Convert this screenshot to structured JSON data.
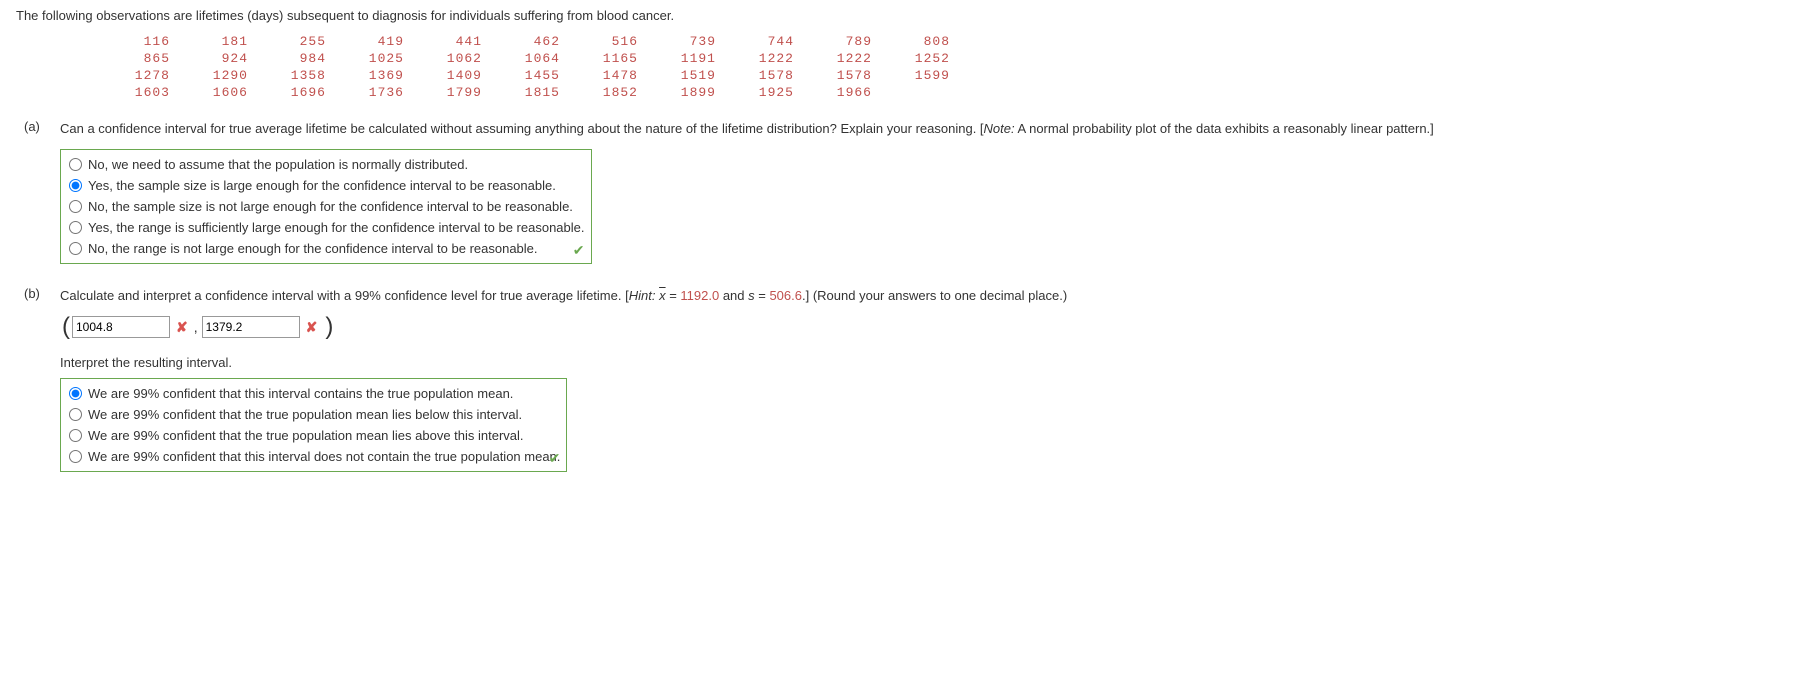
{
  "intro": "The following observations are lifetimes (days) subsequent to diagnosis for individuals suffering from blood cancer.",
  "data_rows": [
    [
      "116",
      "181",
      "255",
      "419",
      "441",
      "462",
      "516",
      "739",
      "744",
      "789",
      "808"
    ],
    [
      "865",
      "924",
      "984",
      "1025",
      "1062",
      "1064",
      "1165",
      "1191",
      "1222",
      "1222",
      "1252"
    ],
    [
      "1278",
      "1290",
      "1358",
      "1369",
      "1409",
      "1455",
      "1478",
      "1519",
      "1578",
      "1578",
      "1599"
    ],
    [
      "1603",
      "1606",
      "1696",
      "1736",
      "1799",
      "1815",
      "1852",
      "1899",
      "1925",
      "1966",
      ""
    ]
  ],
  "data_color": "#c0504d",
  "part_a": {
    "label": "(a)",
    "prompt_main": "Can a confidence interval for true average lifetime be calculated without assuming anything about the nature of the lifetime distribution? Explain your reasoning. [",
    "note_word": "Note:",
    "note_text": " A normal probability plot of the data exhibits a reasonably linear pattern.]",
    "options": [
      "No, we need to assume that the population is normally distributed.",
      "Yes, the sample size is large enough for the confidence interval to be reasonable.",
      "No, the sample size is not large enough for the confidence interval to be reasonable.",
      "Yes, the range is sufficiently large enough for the confidence interval to be reasonable.",
      "No, the range is not large enough for the confidence interval to be reasonable."
    ],
    "selected": 1,
    "correct": true
  },
  "part_b": {
    "label": "(b)",
    "prompt_pre": "Calculate and interpret a confidence interval with a 99% confidence level for true average lifetime. [",
    "hint_word": "Hint:",
    "hint_xbar": "x",
    "hint_eq1": " = ",
    "hint_val1": "1192.0",
    "hint_and": " and ",
    "hint_s": "s",
    "hint_eq2": " = ",
    "hint_val2": "506.6",
    "prompt_post": ".] (Round your answers to one decimal place.)",
    "lower_value": "1004.8",
    "upper_value": "1379.2",
    "lower_correct": false,
    "upper_correct": false,
    "interpret_label": "Interpret the resulting interval.",
    "options": [
      "We are 99% confident that this interval contains the true population mean.",
      "We are 99% confident that the true population mean lies below this interval.",
      "We are 99% confident that the true population mean lies above this interval.",
      "We are 99% confident that this interval does not contain the true population mean."
    ],
    "selected": 0,
    "correct": true
  },
  "style": {
    "border_correct": "#6aa84f",
    "check_color": "#6aa84f",
    "x_color": "#d9534f"
  }
}
